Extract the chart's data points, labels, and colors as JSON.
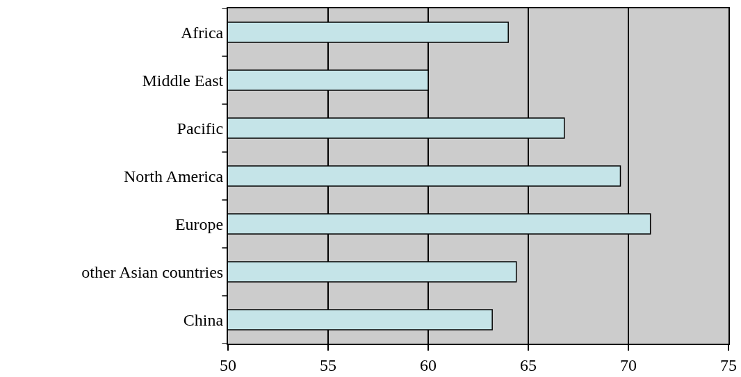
{
  "chart_data": {
    "type": "bar",
    "orientation": "horizontal",
    "categories": [
      "Africa",
      "Middle East",
      "Pacific",
      "North America",
      "Europe",
      "other Asian countries",
      "China"
    ],
    "values": [
      64.0,
      60.0,
      66.8,
      69.6,
      71.1,
      64.4,
      63.2
    ],
    "color": "#c5e4e8",
    "xlim": [
      50,
      75
    ],
    "xticks": [
      50,
      55,
      60,
      65,
      70,
      75
    ],
    "grid": "x",
    "legend": false
  }
}
